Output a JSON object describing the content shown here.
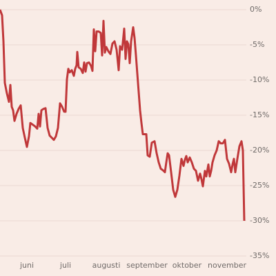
{
  "chart_data": {
    "type": "line",
    "x": [
      0,
      3,
      5,
      7,
      10,
      13,
      15,
      17,
      19,
      21,
      24,
      27,
      30,
      33,
      36,
      39,
      42,
      44,
      47,
      51,
      54,
      56,
      58,
      60,
      63,
      66,
      69,
      72,
      75,
      78,
      81,
      84,
      87,
      90,
      93,
      95,
      97,
      99,
      101,
      104,
      107,
      109,
      111,
      112,
      114,
      117,
      120,
      122,
      124,
      126,
      129,
      132,
      134,
      136,
      138,
      140,
      143,
      146,
      148,
      150,
      152,
      154,
      157,
      160,
      163,
      166,
      169,
      172,
      174,
      177,
      180,
      182,
      184,
      186,
      188,
      190,
      193,
      195,
      197,
      200,
      203,
      205,
      207,
      210,
      212,
      214,
      217,
      220,
      224,
      227,
      230,
      233,
      236,
      239,
      241,
      243,
      245,
      248,
      251,
      254,
      257,
      260,
      263,
      266,
      268,
      270,
      272,
      275,
      278,
      281,
      284,
      287,
      290,
      292,
      294,
      297,
      299,
      302,
      304,
      306,
      308,
      311,
      314,
      317,
      320,
      323,
      326,
      329,
      332,
      335,
      337,
      339,
      341,
      344,
      347,
      350,
      352,
      354
    ],
    "series": [
      {
        "color": "#c0383a",
        "values": [
          0,
          -0.8,
          -4.5,
          -10.4,
          -11.9,
          -13.1,
          -10.7,
          -13.8,
          -14.3,
          -15.8,
          -14.8,
          -14.1,
          -13.6,
          -16.8,
          -18.2,
          -19.5,
          -18.0,
          -16.1,
          -16.3,
          -16.6,
          -16.9,
          -14.8,
          -16.6,
          -14.3,
          -14.1,
          -14.0,
          -16.8,
          -17.9,
          -18.2,
          -18.5,
          -18.0,
          -16.8,
          -13.3,
          -13.8,
          -14.5,
          -14.5,
          -9.9,
          -8.4,
          -8.9,
          -8.6,
          -9.4,
          -8.4,
          -7.9,
          -6.0,
          -8.2,
          -8.4,
          -9.0,
          -7.5,
          -8.8,
          -7.6,
          -7.5,
          -8.0,
          -8.7,
          -2.8,
          -5.9,
          -3.1,
          -3.1,
          -3.3,
          -6.5,
          -1.6,
          -6.1,
          -5.3,
          -5.9,
          -6.3,
          -4.8,
          -4.5,
          -5.7,
          -8.6,
          -5.2,
          -5.7,
          -2.7,
          -7.0,
          -4.5,
          -4.9,
          -7.6,
          -4.5,
          -2.5,
          -4.0,
          -6.5,
          -10.4,
          -14.3,
          -16.1,
          -17.7,
          -17.7,
          -17.7,
          -20.7,
          -20.9,
          -18.9,
          -18.7,
          -20.4,
          -21.7,
          -22.6,
          -22.8,
          -23.1,
          -21.7,
          -20.4,
          -20.7,
          -23.1,
          -25.6,
          -26.6,
          -25.6,
          -23.6,
          -21.2,
          -22.2,
          -21.3,
          -20.8,
          -21.7,
          -21.0,
          -21.7,
          -22.6,
          -22.9,
          -24.3,
          -23.3,
          -24.1,
          -25.1,
          -22.9,
          -23.7,
          -22.0,
          -23.7,
          -22.9,
          -21.7,
          -20.7,
          -20.0,
          -18.7,
          -19.0,
          -19.0,
          -18.5,
          -21.2,
          -21.9,
          -23.1,
          -22.0,
          -21.2,
          -23.1,
          -21.2,
          -19.4,
          -18.7,
          -20.0,
          -30.0
        ]
      }
    ],
    "xlim": [
      0,
      355
    ],
    "xticks": [
      {
        "value": 39,
        "label": "juni"
      },
      {
        "value": 95,
        "label": "juli"
      },
      {
        "value": 154,
        "label": "augusti"
      },
      {
        "value": 213,
        "label": "september"
      },
      {
        "value": 271,
        "label": "oktober"
      },
      {
        "value": 329,
        "label": "november"
      }
    ],
    "ylim": [
      -35,
      0
    ],
    "yticks": [
      {
        "value": 0,
        "label": "0%"
      },
      {
        "value": -5,
        "label": "-5%"
      },
      {
        "value": -10,
        "label": "-10%"
      },
      {
        "value": -15,
        "label": "-15%"
      },
      {
        "value": -20,
        "label": "-20%"
      },
      {
        "value": -25,
        "label": "-25%"
      },
      {
        "value": -30,
        "label": "-30%"
      },
      {
        "value": -35,
        "label": "-35%"
      }
    ],
    "grid": true
  }
}
